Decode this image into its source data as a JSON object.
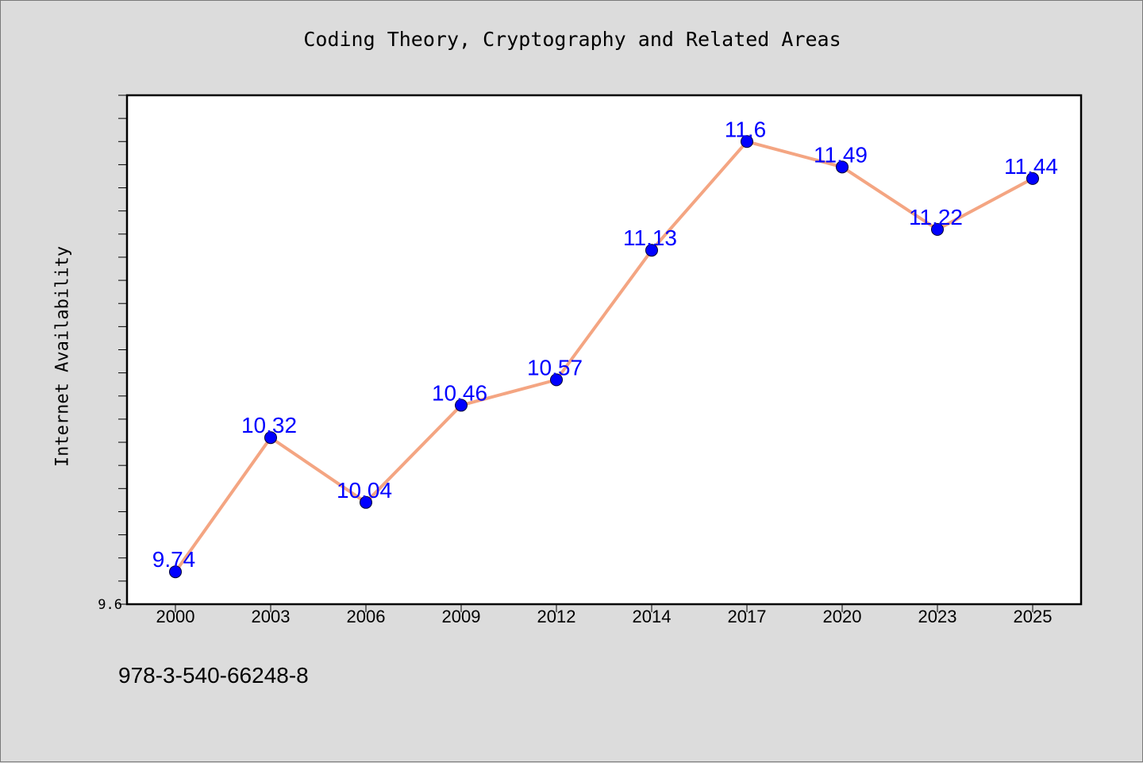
{
  "title": "Coding Theory, Cryptography and Related Areas",
  "ylabel": "Internet Availability",
  "footnote": "978-3-540-66248-8",
  "colors": {
    "background": "#dcdcdc",
    "plot_background": "#ffffff",
    "line": "#f4a582",
    "marker": "#0000ff",
    "data_label": "#0000ff"
  },
  "chart_data": {
    "type": "line",
    "categories": [
      "2000",
      "2003",
      "2006",
      "2009",
      "2012",
      "2014",
      "2017",
      "2020",
      "2023",
      "2025"
    ],
    "values": [
      9.74,
      10.32,
      10.04,
      10.46,
      10.57,
      11.13,
      11.6,
      11.49,
      11.22,
      11.44
    ],
    "data_labels": [
      "9.74",
      "10.32",
      "10.04",
      "10.46",
      "10.57",
      "11.13",
      "11.6",
      "11.49",
      "11.22",
      "11.44"
    ],
    "title": "Coding Theory, Cryptography and Related Areas",
    "xlabel": "",
    "ylabel": "Internet Availability",
    "ylim": [
      9.6,
      11.8
    ],
    "y_tick_labels": [
      "9.6"
    ],
    "grid": false,
    "legend": "none"
  }
}
